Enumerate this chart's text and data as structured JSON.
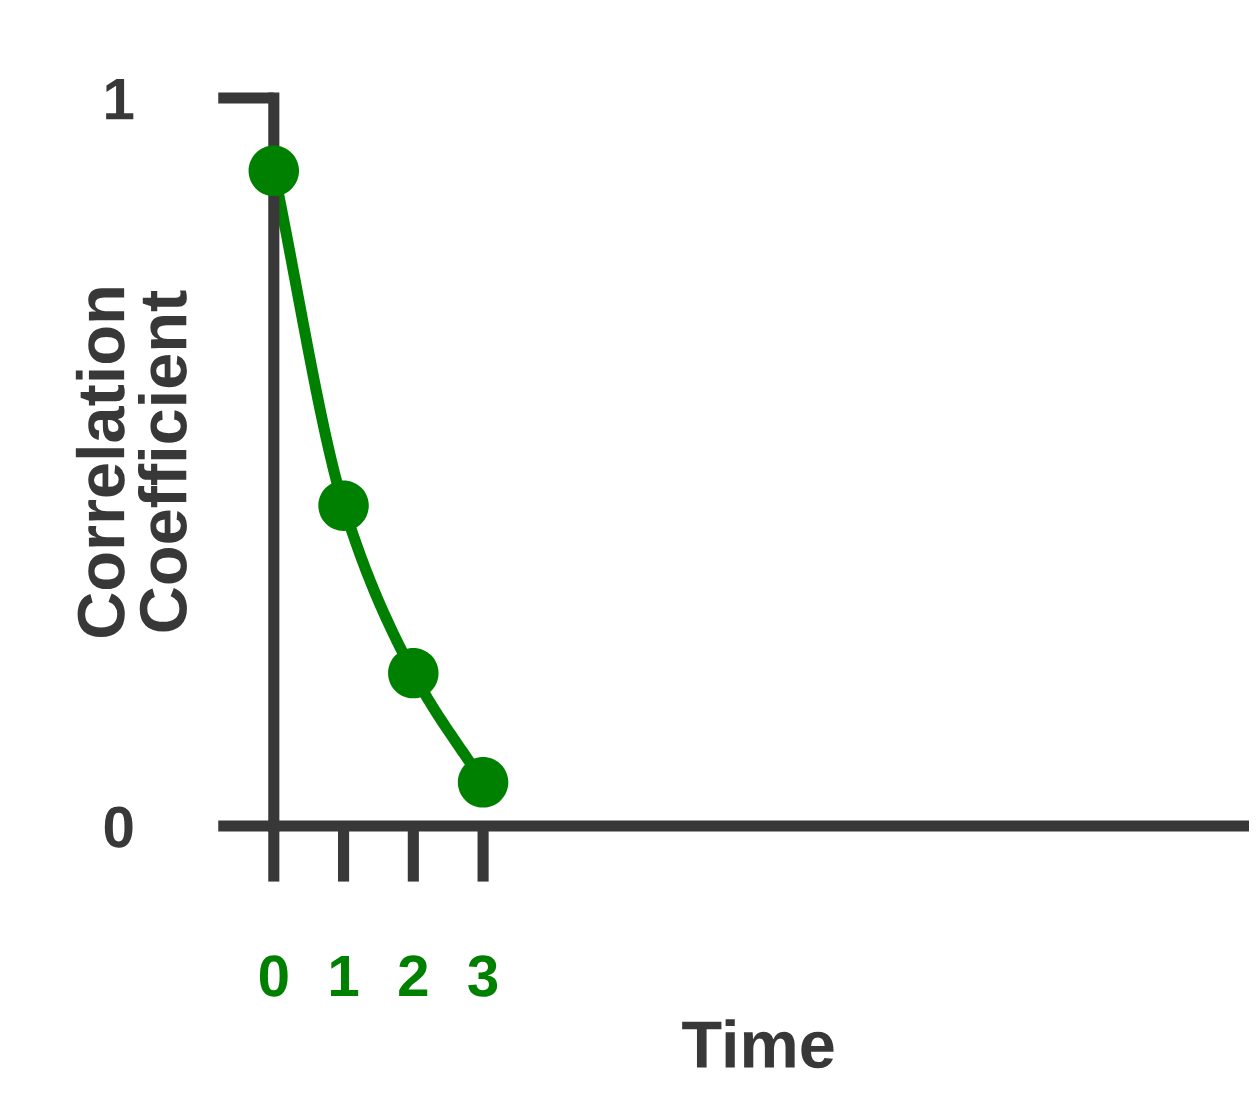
{
  "chart_data": {
    "type": "line",
    "xlabel": "Time",
    "ylabel": "Correlation\nCoefficient",
    "x": [
      0,
      1,
      2,
      3
    ],
    "series": [
      {
        "color": "#008000",
        "values": [
          0.9,
          0.44,
          0.21,
          0.06
        ]
      }
    ],
    "xlim": [
      0,
      13.9
    ],
    "xticks": [
      0,
      1,
      2,
      3
    ],
    "ylim": [
      0,
      1
    ],
    "yticks": [
      0,
      1
    ],
    "marker": "circle",
    "line_style": "solid"
  }
}
